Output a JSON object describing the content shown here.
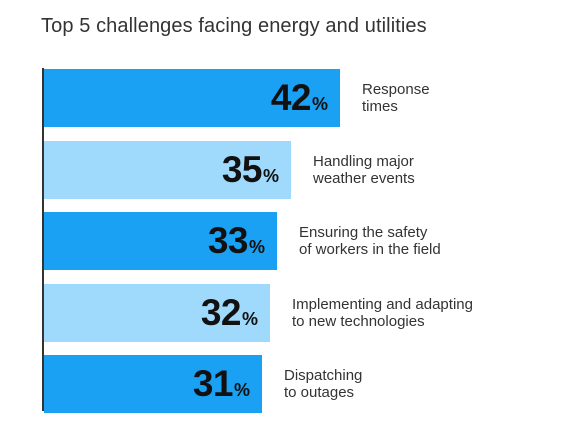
{
  "chart_data": {
    "type": "bar",
    "orientation": "horizontal",
    "title": "Top 5 challenges facing energy and utilities",
    "categories": [
      "Response\ntimes",
      "Handling major\nweather events",
      "Ensuring the safety\nof workers in the field",
      "Implementing and adapting\nto new technologies",
      "Dispatching\nto outages"
    ],
    "values": [
      42,
      35,
      33,
      32,
      31
    ],
    "value_labels": [
      "42",
      "35",
      "33",
      "32",
      "31"
    ],
    "value_suffix": "%",
    "xlim": [
      0,
      42
    ],
    "grid": false,
    "colors": {
      "bar_odd": "#1aa1f3",
      "bar_even": "#9fd9fb",
      "axis": "#333333",
      "text": "#333333"
    }
  }
}
